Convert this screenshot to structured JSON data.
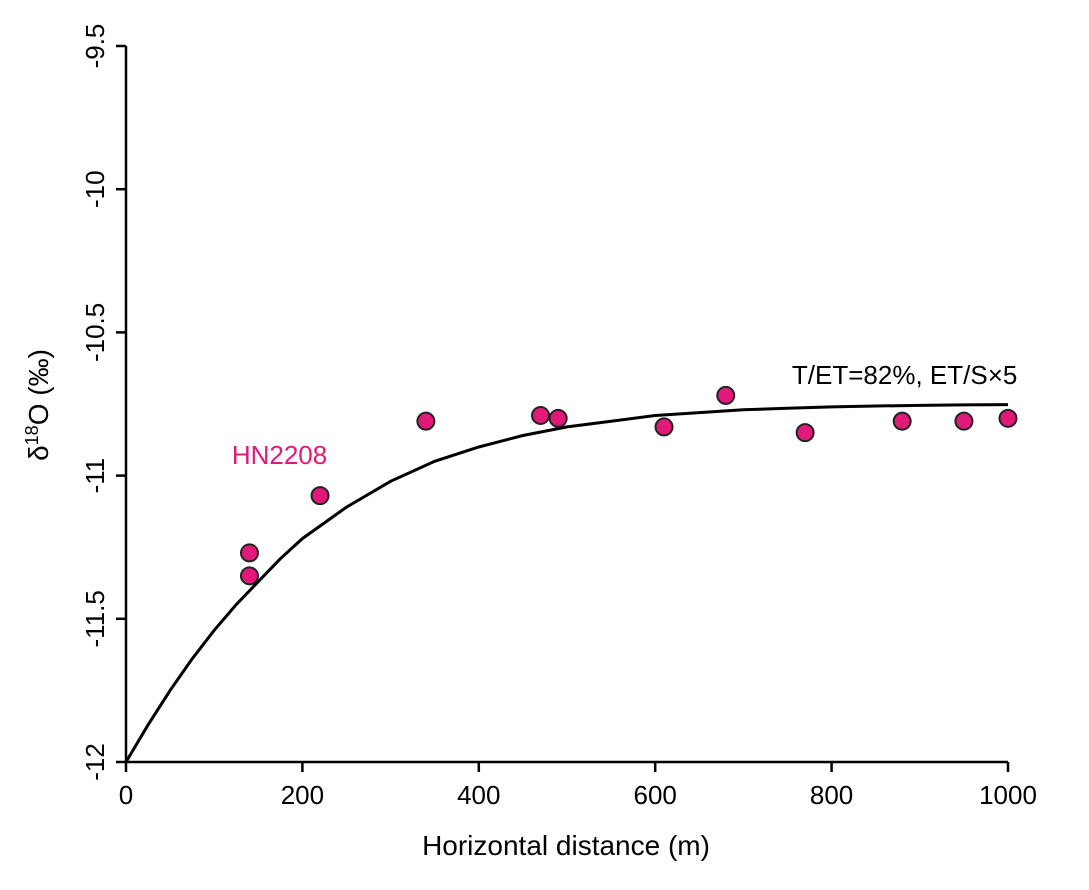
{
  "chart_data": {
    "type": "scatter",
    "xlabel": "Horizontal distance (m)",
    "ylabel": {
      "prefix": "δ",
      "sup": "18",
      "suffix": "O (‰)"
    },
    "xlim": [
      0,
      1000
    ],
    "ylim": [
      -12,
      -9.5
    ],
    "x_ticks": [
      0,
      200,
      400,
      600,
      800,
      1000
    ],
    "x_tick_labels": [
      "0",
      "200",
      "400",
      "600",
      "800",
      "1000"
    ],
    "y_ticks": [
      -12,
      -11.5,
      -11,
      -10.5,
      -10,
      -9.5
    ],
    "y_tick_labels": [
      "-12",
      "-11.5",
      "-11",
      "-10.5",
      "-10",
      "-9.5"
    ],
    "grid": false,
    "point_color": "#e3197a",
    "curve_color": "#000000",
    "points": [
      {
        "x": 140,
        "y": -11.27
      },
      {
        "x": 140,
        "y": -11.35
      },
      {
        "x": 220,
        "y": -11.07
      },
      {
        "x": 340,
        "y": -10.81
      },
      {
        "x": 470,
        "y": -10.79
      },
      {
        "x": 490,
        "y": -10.8
      },
      {
        "x": 610,
        "y": -10.83
      },
      {
        "x": 680,
        "y": -10.72
      },
      {
        "x": 770,
        "y": -10.85
      },
      {
        "x": 880,
        "y": -10.81
      },
      {
        "x": 950,
        "y": -10.81
      },
      {
        "x": 1000,
        "y": -10.8
      }
    ],
    "curve": [
      {
        "x": 0,
        "y": -12.0
      },
      {
        "x": 25,
        "y": -11.87
      },
      {
        "x": 50,
        "y": -11.75
      },
      {
        "x": 75,
        "y": -11.64
      },
      {
        "x": 100,
        "y": -11.54
      },
      {
        "x": 125,
        "y": -11.45
      },
      {
        "x": 150,
        "y": -11.37
      },
      {
        "x": 175,
        "y": -11.29
      },
      {
        "x": 200,
        "y": -11.22
      },
      {
        "x": 250,
        "y": -11.11
      },
      {
        "x": 300,
        "y": -11.02
      },
      {
        "x": 350,
        "y": -10.95
      },
      {
        "x": 400,
        "y": -10.9
      },
      {
        "x": 450,
        "y": -10.86
      },
      {
        "x": 500,
        "y": -10.83
      },
      {
        "x": 550,
        "y": -10.81
      },
      {
        "x": 600,
        "y": -10.79
      },
      {
        "x": 650,
        "y": -10.78
      },
      {
        "x": 700,
        "y": -10.77
      },
      {
        "x": 750,
        "y": -10.765
      },
      {
        "x": 800,
        "y": -10.76
      },
      {
        "x": 850,
        "y": -10.757
      },
      {
        "x": 900,
        "y": -10.755
      },
      {
        "x": 950,
        "y": -10.753
      },
      {
        "x": 1000,
        "y": -10.752
      }
    ],
    "annotations": [
      {
        "text": "HN2208",
        "color": "#e3197a",
        "x": 120,
        "y": -10.96
      },
      {
        "text": "T/ET=82%, ET/S×5",
        "color": "#000000",
        "x": 755,
        "y": -10.68
      }
    ]
  }
}
